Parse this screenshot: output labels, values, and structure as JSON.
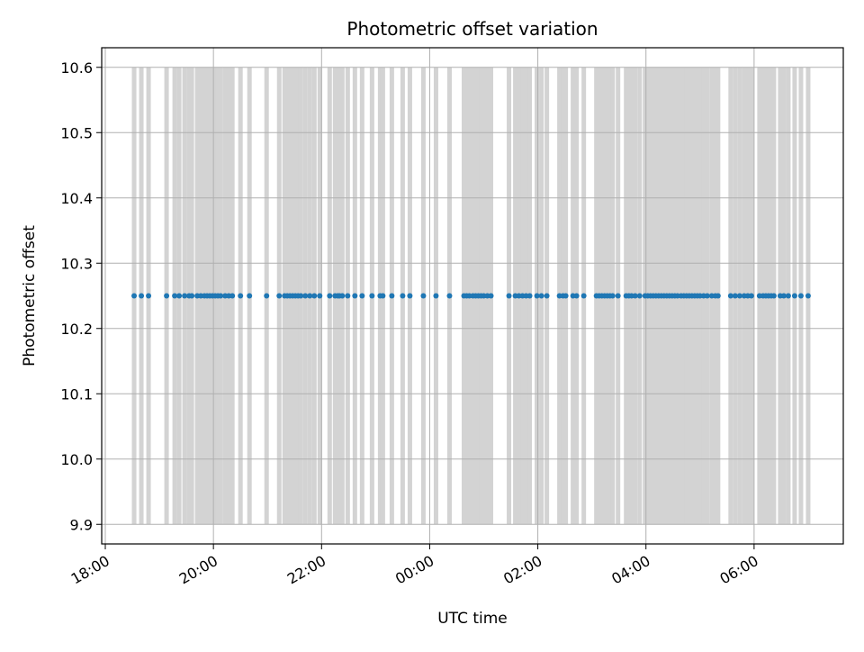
{
  "chart_data": {
    "type": "scatter",
    "title": "Photometric offset variation",
    "xlabel": "UTC time",
    "ylabel": "Photometric offset",
    "x_unit": "UTC time (HH:MM)",
    "xlim": [
      "17:56",
      "07:39 (+1 day)"
    ],
    "ylim": [
      9.87,
      10.63
    ],
    "x_ticks": [
      "18:00",
      "20:00",
      "22:00",
      "00:00",
      "02:00",
      "04:00",
      "06:00"
    ],
    "y_ticks": [
      "9.9",
      "10.0",
      "10.1",
      "10.2",
      "10.3",
      "10.4",
      "10.5",
      "10.6"
    ],
    "grid": true,
    "colors": {
      "points": "#1f77b4",
      "bands": "#d3d3d3",
      "grid": "#b0b0b0"
    },
    "band_range": [
      9.9,
      10.6
    ],
    "series": [
      {
        "marker": "point",
        "y_value": 10.25,
        "x": [
          "18:32",
          "18:40",
          "18:48",
          "19:08",
          "19:17",
          "19:22",
          "19:28",
          "19:33",
          "19:36",
          "19:42",
          "19:46",
          "19:50",
          "19:53",
          "19:56",
          "19:59",
          "20:02",
          "20:05",
          "20:08",
          "20:13",
          "20:17",
          "20:21",
          "20:30",
          "20:40",
          "20:59",
          "21:13",
          "21:19",
          "21:22",
          "21:25",
          "21:28",
          "21:31",
          "21:34",
          "21:37",
          "21:42",
          "21:47",
          "21:52",
          "21:58",
          "22:09",
          "22:15",
          "22:18",
          "22:20",
          "22:23",
          "22:29",
          "22:37",
          "22:45",
          "22:56",
          "23:05",
          "23:08",
          "23:18",
          "23:30",
          "23:38",
          "23:53",
          "00:07",
          "00:22",
          "00:38",
          "00:41",
          "00:44",
          "00:48",
          "00:51",
          "00:54",
          "00:57",
          "01:00",
          "01:04",
          "01:08",
          "01:28",
          "01:35",
          "01:39",
          "01:43",
          "01:47",
          "01:51",
          "01:59",
          "02:04",
          "02:10",
          "02:24",
          "02:28",
          "02:31",
          "02:39",
          "02:43",
          "02:51",
          "03:05",
          "03:08",
          "03:11",
          "03:14",
          "03:17",
          "03:20",
          "03:23",
          "03:29",
          "03:38",
          "03:41",
          "03:44",
          "03:48",
          "03:53",
          "03:59",
          "04:02",
          "04:05",
          "04:08",
          "04:11",
          "04:14",
          "04:17",
          "04:20",
          "04:23",
          "04:26",
          "04:29",
          "04:32",
          "04:35",
          "04:39",
          "04:42",
          "04:45",
          "04:48",
          "04:51",
          "04:54",
          "04:57",
          "05:00",
          "05:04",
          "05:08",
          "05:13",
          "05:17",
          "05:20",
          "05:34",
          "05:39",
          "05:44",
          "05:49",
          "05:53",
          "05:57",
          "06:06",
          "06:10",
          "06:13",
          "06:16",
          "06:19",
          "06:22",
          "06:29",
          "06:33",
          "06:38",
          "06:45",
          "06:52",
          "07:00"
        ]
      }
    ]
  }
}
